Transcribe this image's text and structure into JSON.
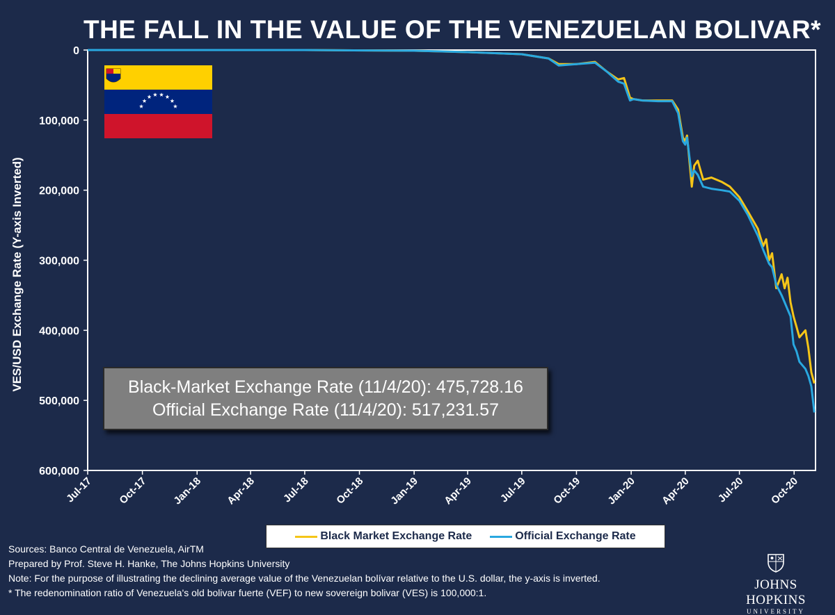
{
  "title": "THE FALL IN THE VALUE OF THE VENEZUELAN BOLIVAR*",
  "info_box": {
    "line1": "Black-Market Exchange Rate (11/4/20): 475,728.16",
    "line2": "Official Exchange Rate (11/4/20): 517,231.57"
  },
  "legend": {
    "black_market": "Black Market Exchange Rate",
    "official": "Official Exchange Rate"
  },
  "notes": [
    "Sources: Banco Central de Venezuela, AirTM",
    "Prepared by Prof. Steve H. Hanke, The Johns Hopkins University",
    "Note: For the purpose of illustrating the declining average value of the Venezuelan bolívar relative to the U.S. dollar, the y-axis is inverted.",
    "* The redenomination ratio of Venezuela's old bolivar fuerte (VEF) to new sovereign bolivar (VES) is 100,000:1."
  ],
  "logo": {
    "name": "JOHNS HOPKINS",
    "sub": "UNIVERSITY"
  },
  "colors": {
    "background": "#1c2a4a",
    "black_market": "#f5c518",
    "official": "#29a8e0",
    "flag_yellow": "#ffd000",
    "flag_blue": "#00247d",
    "flag_red": "#cf142b"
  },
  "chart_data": {
    "type": "line",
    "title": "THE FALL IN THE VALUE OF THE VENEZUELAN BOLIVAR*",
    "ylabel": "VES/USD Exchange Rate (Y-axis Inverted)",
    "xlabel": "",
    "y_inverted": true,
    "ylim": [
      0,
      600000
    ],
    "yticks": [
      0,
      100000,
      200000,
      300000,
      400000,
      500000,
      600000
    ],
    "ytick_labels": [
      "0",
      "100,000",
      "200,000",
      "300,000",
      "400,000",
      "500,000",
      "600,000"
    ],
    "xlim": [
      "2017-07-01",
      "2020-11-06"
    ],
    "xtick_dates": [
      "2017-07-01",
      "2017-10-01",
      "2018-01-01",
      "2018-04-01",
      "2018-07-01",
      "2018-10-01",
      "2019-01-01",
      "2019-04-01",
      "2019-07-01",
      "2019-10-01",
      "2020-01-01",
      "2020-04-01",
      "2020-07-01",
      "2020-10-01"
    ],
    "xtick_labels": [
      "Jul-17",
      "Oct-17",
      "Jan-18",
      "Apr-18",
      "Jul-18",
      "Oct-18",
      "Jan-19",
      "Apr-19",
      "Jul-19",
      "Oct-19",
      "Jan-20",
      "Apr-20",
      "Jul-20",
      "Oct-20"
    ],
    "grid": false,
    "legend_position": "bottom",
    "series": [
      {
        "name": "Black Market Exchange Rate",
        "color": "#f5c518",
        "points": [
          [
            "2017-07-01",
            0
          ],
          [
            "2018-01-01",
            0
          ],
          [
            "2018-07-01",
            0
          ],
          [
            "2019-01-01",
            1000
          ],
          [
            "2019-04-01",
            3000
          ],
          [
            "2019-07-01",
            6000
          ],
          [
            "2019-08-15",
            12000
          ],
          [
            "2019-09-01",
            20000
          ],
          [
            "2019-10-01",
            20000
          ],
          [
            "2019-11-01",
            17000
          ],
          [
            "2019-11-20",
            30000
          ],
          [
            "2019-12-10",
            42000
          ],
          [
            "2019-12-20",
            40000
          ],
          [
            "2019-12-30",
            68000
          ],
          [
            "2020-01-05",
            70000
          ],
          [
            "2020-01-20",
            72000
          ],
          [
            "2020-02-15",
            72000
          ],
          [
            "2020-03-10",
            72000
          ],
          [
            "2020-03-20",
            85000
          ],
          [
            "2020-03-28",
            125000
          ],
          [
            "2020-04-01",
            130000
          ],
          [
            "2020-04-04",
            122000
          ],
          [
            "2020-04-12",
            195000
          ],
          [
            "2020-04-16",
            165000
          ],
          [
            "2020-04-22",
            158000
          ],
          [
            "2020-05-01",
            185000
          ],
          [
            "2020-05-15",
            182000
          ],
          [
            "2020-06-01",
            188000
          ],
          [
            "2020-06-15",
            195000
          ],
          [
            "2020-07-01",
            210000
          ],
          [
            "2020-07-15",
            230000
          ],
          [
            "2020-08-01",
            255000
          ],
          [
            "2020-08-10",
            280000
          ],
          [
            "2020-08-15",
            270000
          ],
          [
            "2020-08-20",
            300000
          ],
          [
            "2020-08-25",
            290000
          ],
          [
            "2020-09-01",
            340000
          ],
          [
            "2020-09-10",
            320000
          ],
          [
            "2020-09-15",
            340000
          ],
          [
            "2020-09-20",
            325000
          ],
          [
            "2020-09-25",
            360000
          ],
          [
            "2020-09-30",
            380000
          ],
          [
            "2020-10-05",
            395000
          ],
          [
            "2020-10-10",
            410000
          ],
          [
            "2020-10-20",
            400000
          ],
          [
            "2020-10-25",
            425000
          ],
          [
            "2020-10-30",
            460000
          ],
          [
            "2020-11-04",
            475728.16
          ]
        ]
      },
      {
        "name": "Official Exchange Rate",
        "color": "#29a8e0",
        "points": [
          [
            "2017-07-01",
            0
          ],
          [
            "2018-01-01",
            0
          ],
          [
            "2018-07-01",
            0
          ],
          [
            "2019-01-01",
            1000
          ],
          [
            "2019-04-01",
            3000
          ],
          [
            "2019-07-01",
            6000
          ],
          [
            "2019-08-15",
            12000
          ],
          [
            "2019-09-01",
            22000
          ],
          [
            "2019-10-01",
            20000
          ],
          [
            "2019-11-01",
            18000
          ],
          [
            "2019-11-20",
            30000
          ],
          [
            "2019-12-10",
            45000
          ],
          [
            "2019-12-20",
            48000
          ],
          [
            "2019-12-30",
            72000
          ],
          [
            "2020-01-05",
            70000
          ],
          [
            "2020-01-20",
            72000
          ],
          [
            "2020-02-15",
            73000
          ],
          [
            "2020-03-10",
            73000
          ],
          [
            "2020-03-20",
            90000
          ],
          [
            "2020-03-28",
            130000
          ],
          [
            "2020-04-01",
            135000
          ],
          [
            "2020-04-04",
            125000
          ],
          [
            "2020-04-12",
            180000
          ],
          [
            "2020-04-16",
            172000
          ],
          [
            "2020-04-22",
            178000
          ],
          [
            "2020-05-01",
            195000
          ],
          [
            "2020-05-15",
            198000
          ],
          [
            "2020-06-01",
            200000
          ],
          [
            "2020-06-15",
            202000
          ],
          [
            "2020-07-01",
            215000
          ],
          [
            "2020-07-15",
            235000
          ],
          [
            "2020-08-01",
            265000
          ],
          [
            "2020-08-10",
            285000
          ],
          [
            "2020-08-15",
            295000
          ],
          [
            "2020-08-20",
            305000
          ],
          [
            "2020-08-25",
            310000
          ],
          [
            "2020-09-01",
            335000
          ],
          [
            "2020-09-10",
            350000
          ],
          [
            "2020-09-15",
            360000
          ],
          [
            "2020-09-20",
            370000
          ],
          [
            "2020-09-25",
            380000
          ],
          [
            "2020-09-30",
            420000
          ],
          [
            "2020-10-05",
            430000
          ],
          [
            "2020-10-10",
            445000
          ],
          [
            "2020-10-20",
            455000
          ],
          [
            "2020-10-25",
            465000
          ],
          [
            "2020-10-30",
            480000
          ],
          [
            "2020-11-04",
            517231.57
          ]
        ]
      }
    ]
  }
}
